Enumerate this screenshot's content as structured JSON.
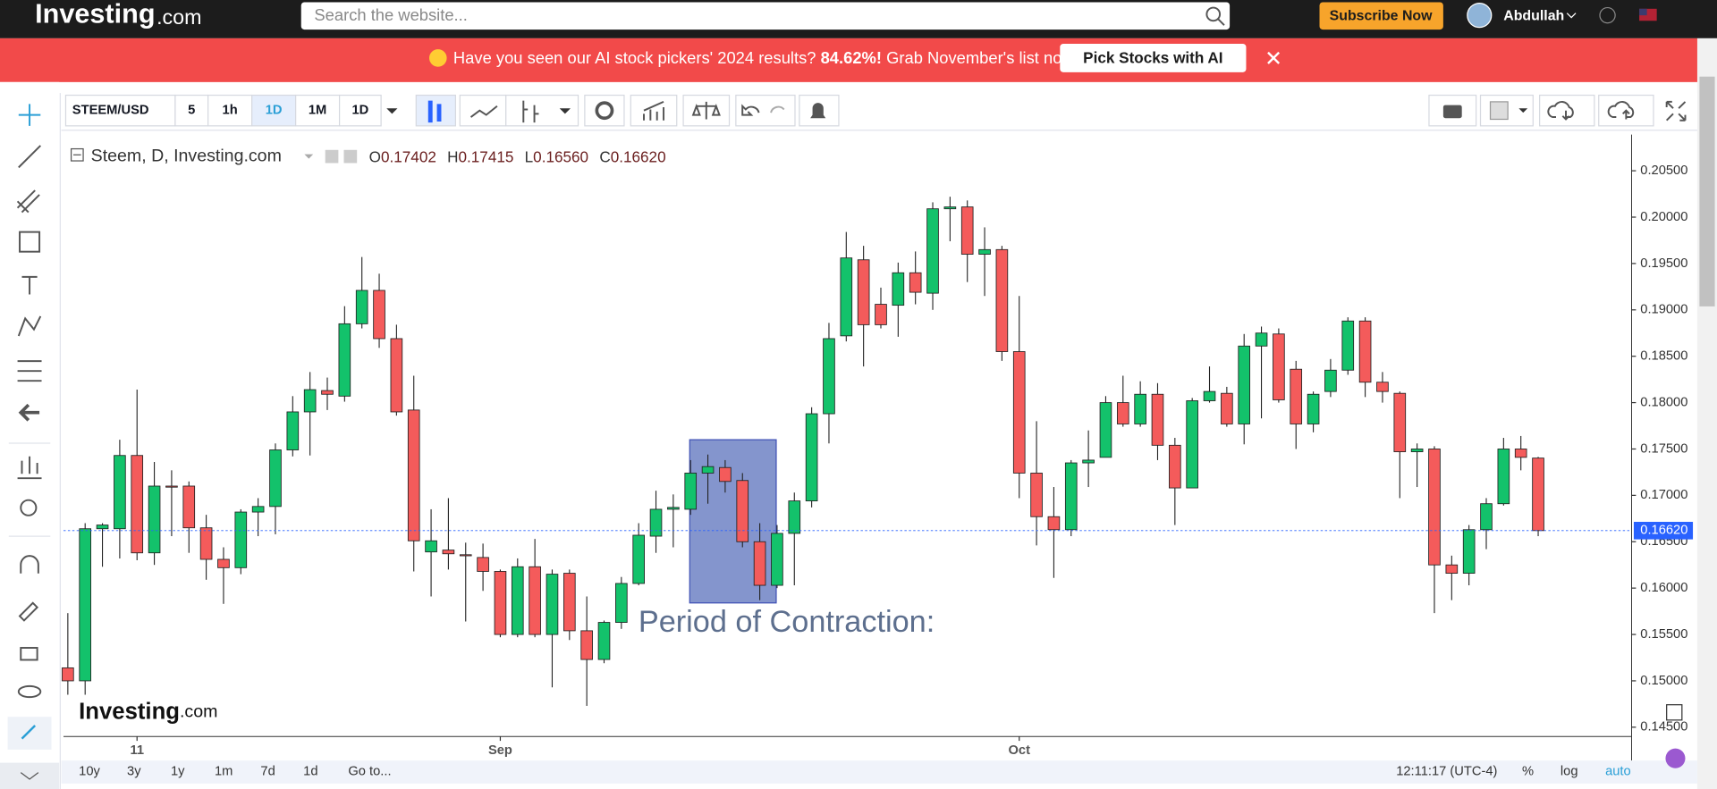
{
  "header": {
    "logo": "Investing",
    "logo_suffix": ".com",
    "search_placeholder": "Search the website...",
    "subscribe": "Subscribe Now",
    "user": "Abdullah"
  },
  "banner": {
    "text": "Have you seen our AI stock pickers' 2024 results?",
    "highlight": "84.62%!",
    "text2": "Grab November's list now.",
    "button": "Pick Stocks with AI"
  },
  "toolbar": {
    "symbol": "STEEM/USD",
    "intervals": [
      "5",
      "1h",
      "1D",
      "1M",
      "1D"
    ]
  },
  "legend": {
    "title": "Steem, D, Investing.com",
    "ohlc": [
      {
        "label": "O",
        "value": "0.17402"
      },
      {
        "label": "H",
        "value": "0.17415"
      },
      {
        "label": "L",
        "value": "0.16560"
      },
      {
        "label": "C",
        "value": "0.16620"
      }
    ]
  },
  "watermark": {
    "logo": "Investing",
    "suffix": ".com"
  },
  "chart_data": {
    "type": "candlestick",
    "up_color": "#13c26b",
    "down_color": "#f45b5b",
    "open": [
      0.1514,
      0.15,
      0.1664,
      0.1664,
      0.1743,
      0.1638,
      0.171,
      0.171,
      0.1665,
      0.1631,
      0.1622,
      0.1682,
      0.1688,
      0.1749,
      0.179,
      0.1813,
      0.1807,
      0.1885,
      0.1921,
      0.1869,
      0.1792,
      0.1639,
      0.1641,
      0.1636,
      0.1633,
      0.1618,
      0.155,
      0.1623,
      0.155,
      0.1616,
      0.1554,
      0.1523,
      0.1563,
      0.1605,
      0.1656,
      0.1685,
      0.1685,
      0.1724,
      0.173,
      0.1716,
      0.165,
      0.1603,
      0.1659,
      0.1694,
      0.1788,
      0.1872,
      0.1954,
      0.1906,
      0.1905,
      0.194,
      0.1918,
      0.2009,
      0.2011,
      0.196,
      0.1965,
      0.1855,
      0.1724,
      0.1677,
      0.1663,
      0.1735,
      0.1741,
      0.18,
      0.1777,
      0.1809,
      0.1754,
      0.1708,
      0.1802,
      0.181,
      0.1777,
      0.1861,
      0.1874,
      0.1836,
      0.1777,
      0.1812,
      0.1835,
      0.1888,
      0.1822,
      0.181,
      0.1747,
      0.175,
      0.1625,
      0.1616,
      0.1663,
      0.1691,
      0.175,
      0.17402
    ],
    "high": [
      0.1573,
      0.167,
      0.167,
      0.176,
      0.1814,
      0.1736,
      0.1727,
      0.1715,
      0.1679,
      0.1644,
      0.1685,
      0.1697,
      0.1756,
      0.1807,
      0.1833,
      0.1827,
      0.1904,
      0.1957,
      0.1939,
      0.1884,
      0.1829,
      0.1685,
      0.1697,
      0.1649,
      0.1648,
      0.162,
      0.1632,
      0.1653,
      0.162,
      0.162,
      0.1591,
      0.1565,
      0.1612,
      0.167,
      0.1705,
      0.1701,
      0.1738,
      0.1744,
      0.1738,
      0.1724,
      0.167,
      0.1668,
      0.1703,
      0.1795,
      0.1886,
      0.1984,
      0.1969,
      0.1924,
      0.1951,
      0.1963,
      0.2016,
      0.2022,
      0.2018,
      0.1989,
      0.1969,
      0.1915,
      0.178,
      0.1709,
      0.1738,
      0.177,
      0.1807,
      0.1829,
      0.1823,
      0.1821,
      0.1762,
      0.1805,
      0.1839,
      0.1817,
      0.1874,
      0.1882,
      0.188,
      0.1845,
      0.1812,
      0.1847,
      0.1892,
      0.1892,
      0.1833,
      0.1812,
      0.1756,
      0.1753,
      0.1635,
      0.1668,
      0.1697,
      0.1762,
      0.1764,
      0.17415
    ],
    "low": [
      0.1485,
      0.1485,
      0.1623,
      0.1632,
      0.163,
      0.1625,
      0.1656,
      0.1638,
      0.1609,
      0.1583,
      0.1615,
      0.1656,
      0.1658,
      0.1742,
      0.1743,
      0.1792,
      0.1801,
      0.188,
      0.1859,
      0.1786,
      0.1618,
      0.1591,
      0.162,
      0.1564,
      0.1597,
      0.1547,
      0.1547,
      0.1547,
      0.1493,
      0.1544,
      0.1473,
      0.1519,
      0.1556,
      0.1603,
      0.1638,
      0.1644,
      0.1679,
      0.1691,
      0.1703,
      0.1644,
      0.1587,
      0.16,
      0.1603,
      0.1687,
      0.1756,
      0.1866,
      0.1839,
      0.188,
      0.1871,
      0.1906,
      0.19,
      0.1974,
      0.193,
      0.1915,
      0.1845,
      0.1697,
      0.1646,
      0.1611,
      0.1656,
      0.1709,
      0.1741,
      0.1774,
      0.1774,
      0.1738,
      0.1668,
      0.1708,
      0.18,
      0.1774,
      0.1755,
      0.1783,
      0.18,
      0.175,
      0.1768,
      0.1806,
      0.183,
      0.1806,
      0.18,
      0.1697,
      0.1709,
      0.1573,
      0.1587,
      0.1603,
      0.1642,
      0.1689,
      0.1727,
      0.1656
    ],
    "close": [
      0.15,
      0.1664,
      0.1668,
      0.1743,
      0.1638,
      0.171,
      0.1709,
      0.1665,
      0.1631,
      0.1622,
      0.1682,
      0.1688,
      0.1749,
      0.179,
      0.1814,
      0.1809,
      0.1885,
      0.1921,
      0.1869,
      0.179,
      0.1651,
      0.1651,
      0.1637,
      0.1635,
      0.1618,
      0.155,
      0.1623,
      0.155,
      0.1615,
      0.1554,
      0.1523,
      0.1563,
      0.1605,
      0.1657,
      0.1685,
      0.1687,
      0.1724,
      0.1731,
      0.1715,
      0.165,
      0.1603,
      0.1659,
      0.1694,
      0.1788,
      0.1869,
      0.1956,
      0.1884,
      0.1884,
      0.194,
      0.1919,
      0.2009,
      0.2011,
      0.196,
      0.1965,
      0.1855,
      0.1724,
      0.1677,
      0.1663,
      0.1735,
      0.1738,
      0.18,
      0.1777,
      0.1809,
      0.1754,
      0.1708,
      0.1802,
      0.1812,
      0.1777,
      0.1861,
      0.1875,
      0.1803,
      0.1777,
      0.1809,
      0.1835,
      0.1888,
      0.1822,
      0.1812,
      0.1747,
      0.175,
      0.1625,
      0.1616,
      0.1663,
      0.1691,
      0.175,
      0.1741,
      0.1662
    ],
    "xlim": [
      -0.25,
      90.4
    ],
    "xticks": [
      {
        "value": 4,
        "label": "11"
      },
      {
        "value": 25,
        "label": "Sep"
      },
      {
        "value": 55,
        "label": "Oct"
      }
    ],
    "ylim": [
      0.144,
      0.2089
    ],
    "yticks": [
      {
        "value": 0.145,
        "label": "0.14500"
      },
      {
        "value": 0.15,
        "label": "0.15000"
      },
      {
        "value": 0.155,
        "label": "0.15500"
      },
      {
        "value": 0.16,
        "label": "0.16000"
      },
      {
        "value": 0.165,
        "label": "0.16500"
      },
      {
        "value": 0.17,
        "label": "0.17000"
      },
      {
        "value": 0.175,
        "label": "0.17500"
      },
      {
        "value": 0.18,
        "label": "0.18000"
      },
      {
        "value": 0.185,
        "label": "0.18500"
      },
      {
        "value": 0.19,
        "label": "0.19000"
      },
      {
        "value": 0.195,
        "label": "0.19500"
      },
      {
        "value": 0.2,
        "label": "0.20000"
      },
      {
        "value": 0.205,
        "label": "0.20500"
      }
    ],
    "last_price": {
      "value": 0.1662,
      "label": "0.16620"
    },
    "annotation": {
      "text": "Period of Contraction:",
      "x": [
        35.95,
        40.95
      ],
      "y": [
        0.1584,
        0.176
      ]
    },
    "grid": false
  },
  "bottom_bar": {
    "ranges": [
      "10y",
      "3y",
      "1y",
      "1m",
      "7d",
      "1d",
      "Go to..."
    ],
    "time": "12:11:17 (UTC-4)",
    "options": [
      "%",
      "log",
      "auto"
    ]
  }
}
